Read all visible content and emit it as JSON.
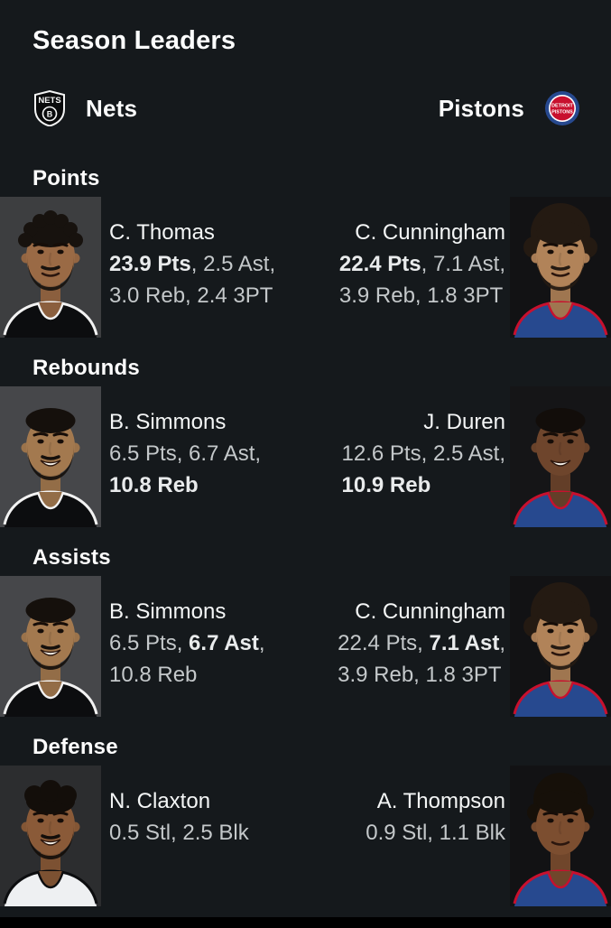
{
  "page": {
    "background": "#15191c",
    "bottom_bar_color": "#000000"
  },
  "header": {
    "title": "Season Leaders"
  },
  "teams": {
    "left": {
      "name": "Nets",
      "logo_text": "NETS",
      "logo_letter": "B",
      "colors": {
        "primary": "#0a0b0c",
        "secondary": "#f4f5f5"
      }
    },
    "right": {
      "name": "Pistons",
      "logo_text_line1": "DETROIT",
      "logo_text_line2": "PISTONS",
      "colors": {
        "primary": "#c8102e",
        "secondary": "#27498f"
      }
    }
  },
  "stat_text_colors": {
    "regular": "#c4c8ca",
    "bold": "#e9ebec",
    "name": "#f4f6f6"
  },
  "sections": [
    {
      "label": "Points",
      "left": {
        "name": "C. Thomas",
        "lines": [
          [
            {
              "t": "23.9 Pts",
              "b": true
            },
            {
              "t": ", 2.5 Ast,",
              "b": false
            }
          ],
          [
            {
              "t": "3.0 Reb, 2.4 3PT",
              "b": false
            }
          ]
        ],
        "avatar": {
          "style": "twists",
          "bg": "#3d3e40",
          "skin": "#9a6a45",
          "hair": "#17120e",
          "jersey": "#0c0d0f",
          "trim": "#f2f2f2",
          "beard": true,
          "smile": false
        }
      },
      "right": {
        "name": "C. Cunningham",
        "lines": [
          [
            {
              "t": "22.4 Pts",
              "b": true
            },
            {
              "t": ", 7.1 Ast,",
              "b": false
            }
          ],
          [
            {
              "t": "3.9 Reb, 1.8 3PT",
              "b": false
            }
          ]
        ],
        "avatar": {
          "style": "afro",
          "bg": "#121214",
          "skin": "#b18359",
          "hair": "#241a12",
          "jersey": "#27498f",
          "trim": "#c8102e",
          "beard": true,
          "smile": false
        }
      }
    },
    {
      "label": "Rebounds",
      "left": {
        "name": "B. Simmons",
        "lines": [
          [
            {
              "t": "6.5 Pts, 6.7 Ast,",
              "b": false
            }
          ],
          [
            {
              "t": "10.8 Reb",
              "b": true
            }
          ]
        ],
        "avatar": {
          "style": "short",
          "bg": "#46474a",
          "skin": "#a3794f",
          "hair": "#15100c",
          "jersey": "#0c0d0f",
          "trim": "#f2f2f2",
          "beard": true,
          "smile": true
        }
      },
      "right": {
        "name": "J. Duren",
        "lines": [
          [
            {
              "t": "12.6 Pts, 2.5 Ast,",
              "b": false
            }
          ],
          [
            {
              "t": "10.9 Reb",
              "b": true
            }
          ]
        ],
        "avatar": {
          "style": "short",
          "bg": "#151517",
          "skin": "#6e452c",
          "hair": "#120d0a",
          "jersey": "#27498f",
          "trim": "#c8102e",
          "beard": false,
          "smile": true
        }
      }
    },
    {
      "label": "Assists",
      "left": {
        "name": "B. Simmons",
        "lines": [
          [
            {
              "t": "6.5 Pts, ",
              "b": false
            },
            {
              "t": "6.7 Ast",
              "b": true
            },
            {
              "t": ",",
              "b": false
            }
          ],
          [
            {
              "t": "10.8 Reb",
              "b": false
            }
          ]
        ],
        "avatar": {
          "style": "short",
          "bg": "#46474a",
          "skin": "#a3794f",
          "hair": "#15100c",
          "jersey": "#0c0d0f",
          "trim": "#f2f2f2",
          "beard": true,
          "smile": true
        }
      },
      "right": {
        "name": "C. Cunningham",
        "lines": [
          [
            {
              "t": "22.4 Pts, ",
              "b": false
            },
            {
              "t": "7.1 Ast",
              "b": true
            },
            {
              "t": ",",
              "b": false
            }
          ],
          [
            {
              "t": "3.9 Reb, 1.8 3PT",
              "b": false
            }
          ]
        ],
        "avatar": {
          "style": "afro",
          "bg": "#121214",
          "skin": "#b18359",
          "hair": "#241a12",
          "jersey": "#27498f",
          "trim": "#c8102e",
          "beard": true,
          "smile": false
        }
      }
    },
    {
      "label": "Defense",
      "left": {
        "name": "N. Claxton",
        "lines": [
          [
            {
              "t": "0.5 Stl, 2.5 Blk",
              "b": false
            }
          ]
        ],
        "avatar": {
          "style": "curls",
          "bg": "#2c2d2f",
          "skin": "#8a5a38",
          "hair": "#130e0a",
          "jersey": "#eef0f2",
          "trim": "#0c0d0f",
          "beard": true,
          "smile": true
        }
      },
      "right": {
        "name": "A. Thompson",
        "lines": [
          [
            {
              "t": "0.9 Stl, 1.1 Blk",
              "b": false
            }
          ]
        ],
        "avatar": {
          "style": "afro2",
          "bg": "#121214",
          "skin": "#7c4e30",
          "hair": "#161009",
          "jersey": "#27498f",
          "trim": "#c8102e",
          "beard": false,
          "smile": false
        }
      }
    }
  ]
}
